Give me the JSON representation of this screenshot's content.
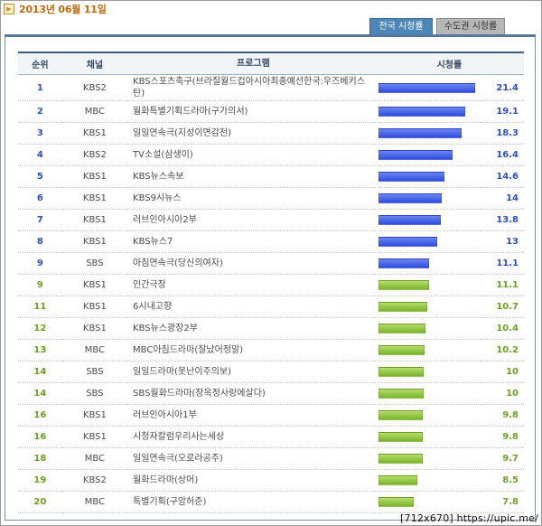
{
  "header": {
    "date": "2013년 06월 11일"
  },
  "tabs": [
    {
      "label": "전국 시청률",
      "active": true
    },
    {
      "label": "수도권 시청률",
      "active": false
    }
  ],
  "table": {
    "columns": [
      "순위",
      "채널",
      "프로그램",
      "시청률"
    ],
    "rows": [
      {
        "rank": "1",
        "channel": "KBS2",
        "program": "KBS스포츠축구(브라질월드컵아시아최종예선한국:우즈베키스탄)",
        "rating": "21.4",
        "value": 21.4,
        "color": "blue"
      },
      {
        "rank": "2",
        "channel": "MBC",
        "program": "월화특별기획드라마(구가의서)",
        "rating": "19.1",
        "value": 19.1,
        "color": "blue"
      },
      {
        "rank": "3",
        "channel": "KBS1",
        "program": "일일연속극(지성이면감천)",
        "rating": "18.3",
        "value": 18.3,
        "color": "blue"
      },
      {
        "rank": "4",
        "channel": "KBS2",
        "program": "TV소설(삼생이)",
        "rating": "16.4",
        "value": 16.4,
        "color": "blue"
      },
      {
        "rank": "5",
        "channel": "KBS1",
        "program": "KBS뉴스속보",
        "rating": "14.6",
        "value": 14.6,
        "color": "blue"
      },
      {
        "rank": "6",
        "channel": "KBS1",
        "program": "KBS9시뉴스",
        "rating": "14",
        "value": 14.0,
        "color": "blue"
      },
      {
        "rank": "7",
        "channel": "KBS1",
        "program": "러브인아시아2부",
        "rating": "13.8",
        "value": 13.8,
        "color": "blue"
      },
      {
        "rank": "8",
        "channel": "KBS1",
        "program": "KBS뉴스7",
        "rating": "13",
        "value": 13.0,
        "color": "blue"
      },
      {
        "rank": "9",
        "channel": "SBS",
        "program": "아침연속극(당신의여자)",
        "rating": "11.1",
        "value": 11.1,
        "color": "blue"
      },
      {
        "rank": "9",
        "channel": "KBS1",
        "program": "인간극장",
        "rating": "11.1",
        "value": 11.1,
        "color": "green"
      },
      {
        "rank": "11",
        "channel": "KBS1",
        "program": "6시내고향",
        "rating": "10.7",
        "value": 10.7,
        "color": "green"
      },
      {
        "rank": "12",
        "channel": "KBS1",
        "program": "KBS뉴스광장2부",
        "rating": "10.4",
        "value": 10.4,
        "color": "green"
      },
      {
        "rank": "13",
        "channel": "MBC",
        "program": "MBC아침드라마(잘났어정말)",
        "rating": "10.2",
        "value": 10.2,
        "color": "green"
      },
      {
        "rank": "14",
        "channel": "SBS",
        "program": "일일드라마(못난이주의보)",
        "rating": "10",
        "value": 10.0,
        "color": "green"
      },
      {
        "rank": "14",
        "channel": "SBS",
        "program": "SBS월화드라마(장옥정사랑에살다)",
        "rating": "10",
        "value": 10.0,
        "color": "green"
      },
      {
        "rank": "16",
        "channel": "KBS1",
        "program": "러브인아시아1부",
        "rating": "9.8",
        "value": 9.8,
        "color": "green"
      },
      {
        "rank": "16",
        "channel": "KBS1",
        "program": "시청자칼럼우리사는세상",
        "rating": "9.8",
        "value": 9.8,
        "color": "green"
      },
      {
        "rank": "18",
        "channel": "MBC",
        "program": "일일연속극(오로라공주)",
        "rating": "9.7",
        "value": 9.7,
        "color": "green"
      },
      {
        "rank": "19",
        "channel": "KBS2",
        "program": "월화드라마(상어)",
        "rating": "8.5",
        "value": 8.5,
        "color": "green"
      },
      {
        "rank": "20",
        "channel": "MBC",
        "program": "특별기획(구암허준)",
        "rating": "7.8",
        "value": 7.8,
        "color": "green"
      }
    ]
  },
  "watermark": "[712x670] https://upic.me/"
}
